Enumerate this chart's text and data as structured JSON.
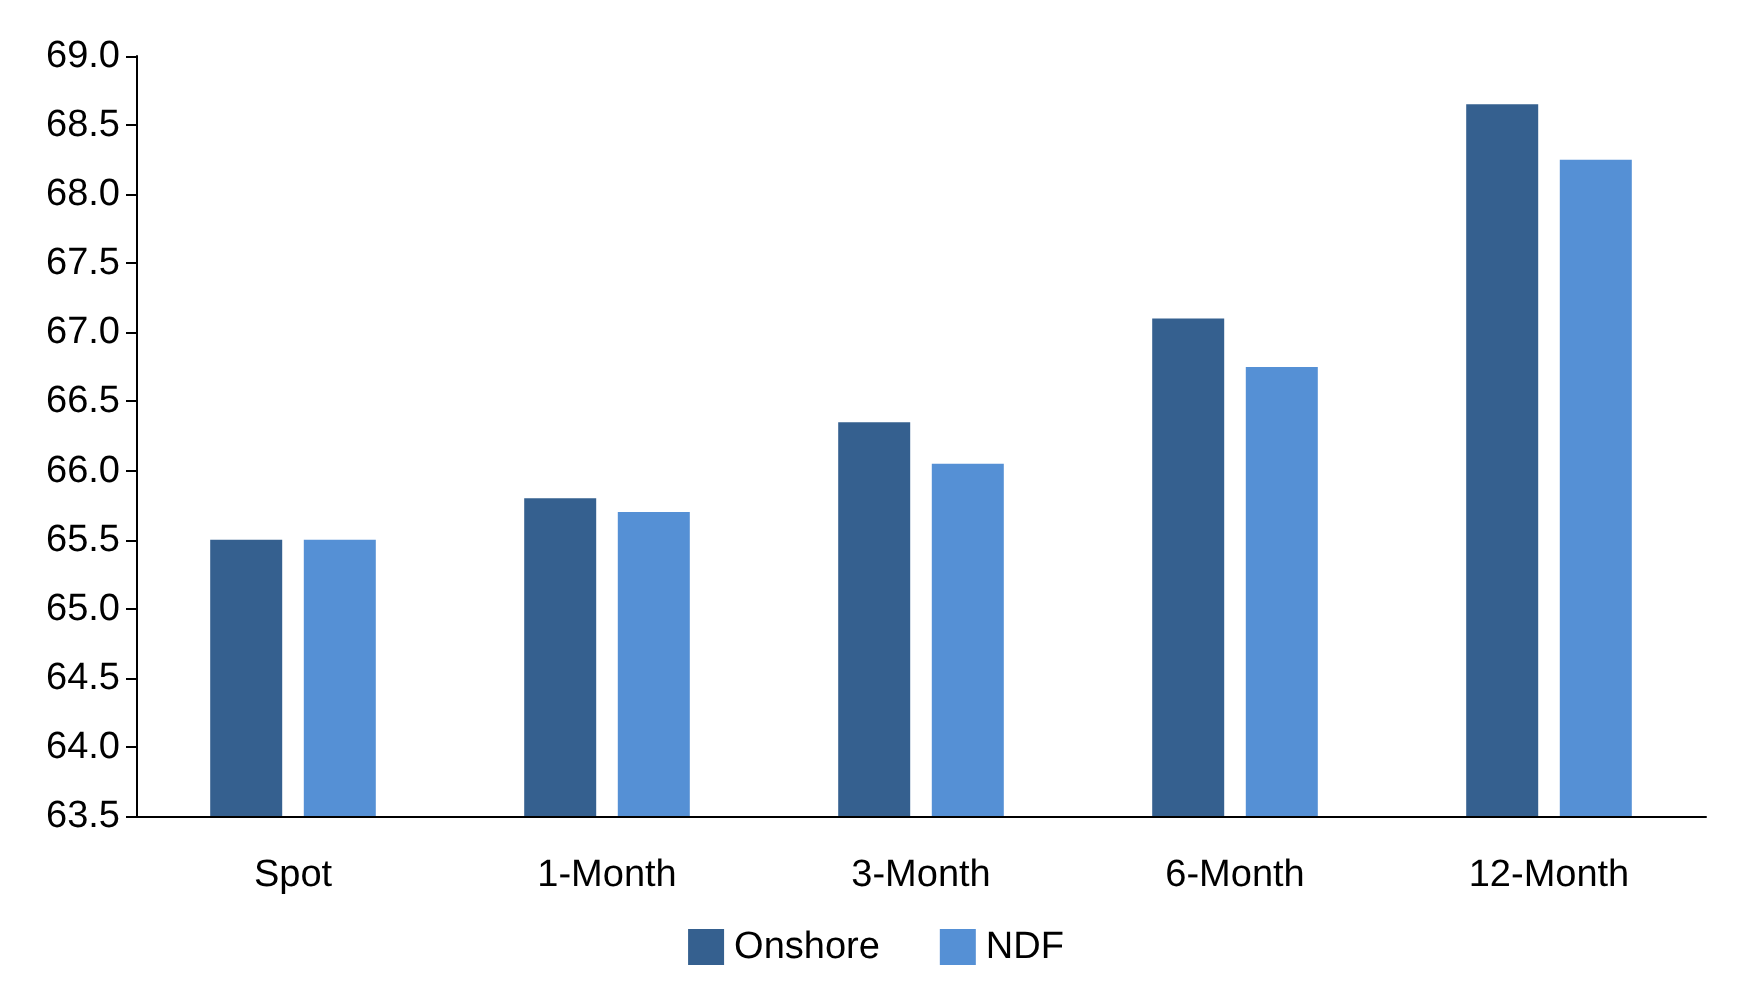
{
  "chart_data": {
    "type": "bar",
    "categories": [
      "Spot",
      "1-Month",
      "3-Month",
      "6-Month",
      "12-Month"
    ],
    "series": [
      {
        "name": "Onshore",
        "color": "#35608f",
        "values": [
          65.5,
          65.8,
          66.35,
          67.1,
          68.65
        ]
      },
      {
        "name": "NDF",
        "color": "#5590d5",
        "values": [
          65.5,
          65.7,
          66.05,
          66.75,
          68.25
        ]
      }
    ],
    "ylim": [
      63.5,
      69.0
    ],
    "yticks": [
      {
        "value": 63.5,
        "label": "63.5"
      },
      {
        "value": 64,
        "label": "64.0"
      },
      {
        "value": 64.5,
        "label": "64.5"
      },
      {
        "value": 65,
        "label": "65.0"
      },
      {
        "value": 65.5,
        "label": "65.5"
      },
      {
        "value": 66,
        "label": "66.0"
      },
      {
        "value": 66.5,
        "label": "66.5"
      },
      {
        "value": 67,
        "label": "67.0"
      },
      {
        "value": 67.5,
        "label": "67.5"
      },
      {
        "value": 68,
        "label": "68.0"
      },
      {
        "value": 68.5,
        "label": "68.5"
      },
      {
        "value": 69,
        "label": "69.0"
      }
    ],
    "grid": false,
    "legend": "bottom"
  }
}
